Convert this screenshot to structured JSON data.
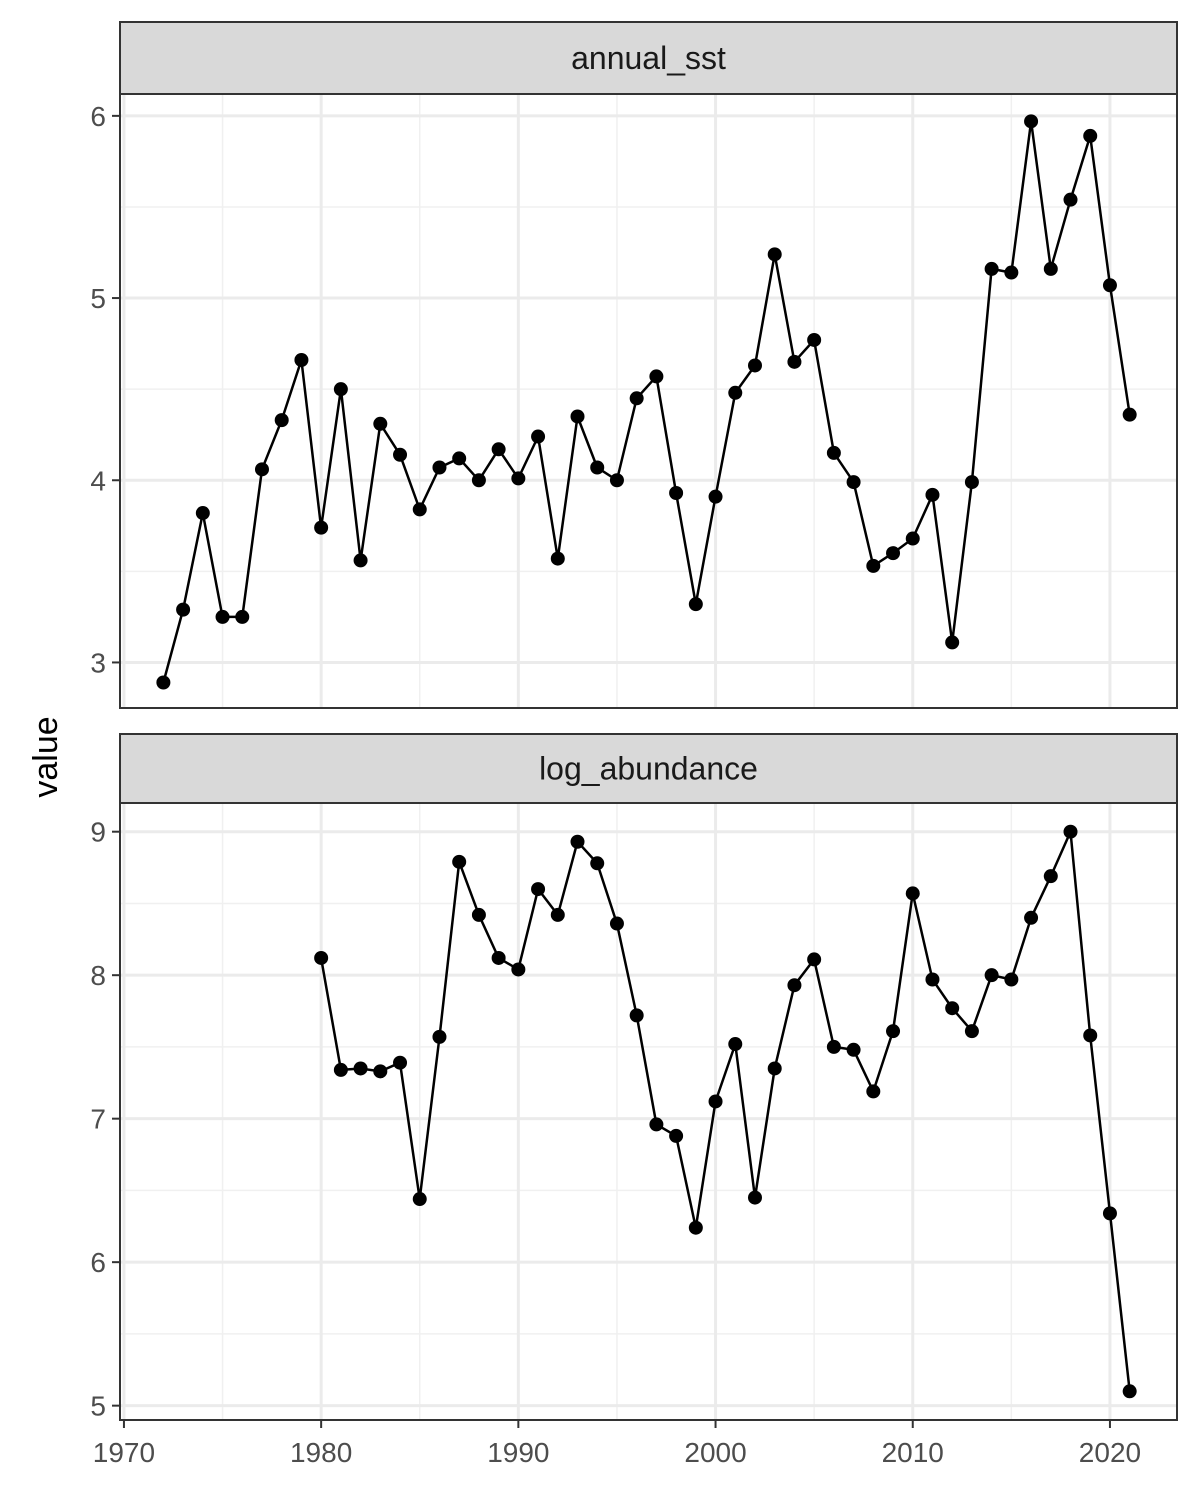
{
  "chart_data": {
    "type": "line",
    "ylabel": "value",
    "xlabel": "",
    "x_ticks": [
      1970,
      1980,
      1990,
      2000,
      2010,
      2020
    ],
    "xlim": [
      1969.8,
      2023.4
    ],
    "grid": true,
    "facets": [
      {
        "strip_label": "annual_sst",
        "ylim": [
          2.75,
          6.12
        ],
        "y_ticks": [
          3,
          4,
          5,
          6
        ],
        "x": [
          1972,
          1973,
          1974,
          1975,
          1976,
          1977,
          1978,
          1979,
          1980,
          1981,
          1982,
          1983,
          1984,
          1985,
          1986,
          1987,
          1988,
          1989,
          1990,
          1991,
          1992,
          1993,
          1994,
          1995,
          1996,
          1997,
          1998,
          1999,
          2000,
          2001,
          2002,
          2003,
          2004,
          2005,
          2006,
          2007,
          2008,
          2009,
          2010,
          2011,
          2012,
          2013,
          2014,
          2015,
          2016,
          2017,
          2018,
          2019,
          2020,
          2021
        ],
        "y": [
          2.89,
          3.29,
          3.82,
          3.25,
          3.25,
          4.06,
          4.33,
          4.66,
          3.74,
          4.5,
          3.56,
          4.31,
          4.14,
          3.84,
          4.07,
          4.12,
          4.0,
          4.17,
          4.01,
          4.24,
          3.57,
          4.35,
          4.07,
          4.0,
          4.45,
          4.57,
          3.93,
          3.32,
          3.91,
          4.48,
          4.63,
          5.24,
          4.65,
          4.77,
          4.15,
          3.99,
          3.53,
          3.6,
          3.68,
          3.92,
          3.11,
          3.99,
          5.16,
          5.14,
          5.97,
          5.16,
          5.54,
          5.89,
          5.07,
          4.36
        ]
      },
      {
        "strip_label": "log_abundance",
        "ylim": [
          4.9,
          9.2
        ],
        "y_ticks": [
          5,
          6,
          7,
          8,
          9
        ],
        "x": [
          1980,
          1981,
          1982,
          1983,
          1984,
          1985,
          1986,
          1987,
          1988,
          1989,
          1990,
          1991,
          1992,
          1993,
          1994,
          1995,
          1996,
          1997,
          1998,
          1999,
          2000,
          2001,
          2002,
          2003,
          2004,
          2005,
          2006,
          2007,
          2008,
          2009,
          2010,
          2011,
          2012,
          2013,
          2014,
          2015,
          2016,
          2017,
          2018,
          2019,
          2020,
          2021
        ],
        "y": [
          8.12,
          7.34,
          7.35,
          7.33,
          7.39,
          6.44,
          7.57,
          8.79,
          8.42,
          8.12,
          8.04,
          8.6,
          8.42,
          8.93,
          8.78,
          8.36,
          7.72,
          6.96,
          6.88,
          6.24,
          7.12,
          7.52,
          6.45,
          7.35,
          7.93,
          8.11,
          7.5,
          7.48,
          7.19,
          7.61,
          8.57,
          7.97,
          7.77,
          7.61,
          8.0,
          7.97,
          8.4,
          8.69,
          9.0,
          7.58,
          6.34,
          5.1
        ]
      }
    ]
  }
}
